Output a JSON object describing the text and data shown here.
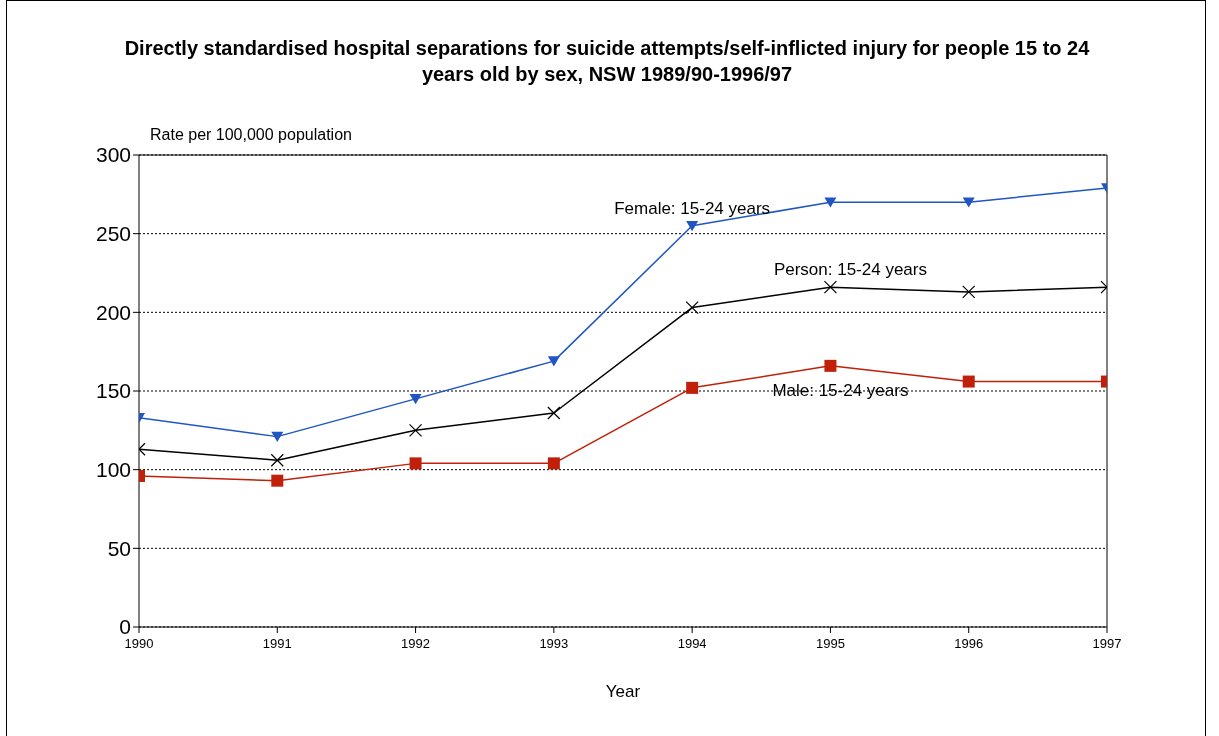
{
  "chart_data": {
    "type": "line",
    "title": "Directly standardised hospital separations for suicide attempts/self-inflicted injury for people 15 to 24 years old by sex, NSW 1989/90-1996/97",
    "xlabel": "Year",
    "ylabel": "Rate per 100,000 population",
    "x": [
      1990,
      1991,
      1992,
      1993,
      1994,
      1995,
      1996,
      1997
    ],
    "series": [
      {
        "name": "Female: 15-24 years",
        "color": "#1f56c4",
        "marker": "triangle",
        "values": [
          133,
          121,
          145,
          169,
          255,
          270,
          270,
          279
        ]
      },
      {
        "name": "Person: 15-24 years",
        "color": "#000000",
        "marker": "cross",
        "values": [
          113,
          106,
          125,
          136,
          203,
          216,
          213,
          216
        ]
      },
      {
        "name": "Male: 15-24 years",
        "color": "#c0200a",
        "marker": "square",
        "values": [
          96,
          93,
          104,
          104,
          152,
          166,
          156,
          156
        ]
      }
    ],
    "xlim": [
      1990,
      1997
    ],
    "xticks": [
      1990,
      1991,
      1992,
      1993,
      1994,
      1995,
      1996,
      1997
    ],
    "ylim": [
      0,
      300
    ],
    "yticks": [
      0,
      50,
      100,
      150,
      200,
      250,
      300
    ],
    "grid": "y",
    "legend": false,
    "line_style": "solid"
  }
}
